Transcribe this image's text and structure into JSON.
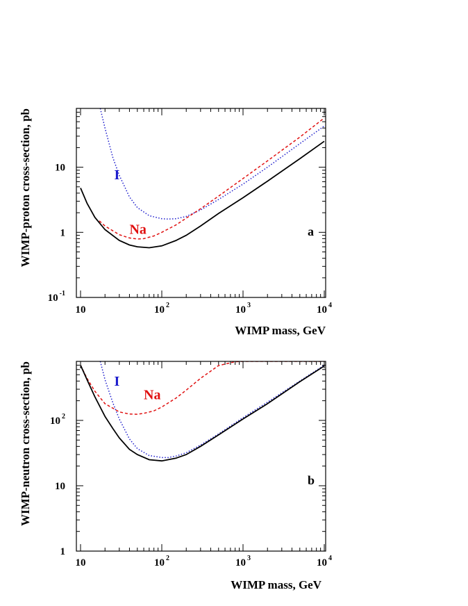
{
  "chart_data": [
    {
      "type": "line",
      "panel_label": "a",
      "xlabel": "WIMP mass, GeV",
      "ylabel": "WIMP-proton cross-section, pb",
      "xscale": "log",
      "yscale": "log",
      "xlim": [
        9,
        11000
      ],
      "ylim": [
        0.1,
        80
      ],
      "x_ticks": [
        {
          "base": "10",
          "exp": ""
        },
        {
          "base": "10",
          "exp": "2"
        },
        {
          "base": "10",
          "exp": "3"
        },
        {
          "base": "10",
          "exp": "4"
        }
      ],
      "y_ticks": [
        {
          "base": "10",
          "exp": "-1"
        },
        {
          "base": "1",
          "exp": ""
        },
        {
          "base": "10",
          "exp": ""
        }
      ],
      "series": [
        {
          "name": "I",
          "color": "#1a1acc",
          "dash": "dotted",
          "x": [
            17.5,
            20,
            25,
            30,
            40,
            50,
            70,
            100,
            120,
            150,
            200,
            300,
            500,
            1000,
            2000,
            5000,
            10000
          ],
          "y": [
            80,
            40,
            14,
            7.5,
            3.5,
            2.4,
            1.8,
            1.62,
            1.6,
            1.62,
            1.75,
            2.2,
            3.2,
            5.5,
            10,
            23,
            43
          ]
        },
        {
          "name": "Na",
          "color": "#e01010",
          "dash": "dashed",
          "x": [
            17,
            20,
            30,
            40,
            50,
            60,
            80,
            100,
            150,
            200,
            300,
            500,
            1000,
            2000,
            5000,
            10000
          ],
          "y": [
            1.5,
            1.25,
            0.92,
            0.82,
            0.79,
            0.8,
            0.88,
            1.0,
            1.3,
            1.65,
            2.3,
            3.6,
            6.7,
            12.5,
            29,
            57
          ]
        },
        {
          "name": "",
          "color": "#000000",
          "dash": "solid",
          "x": [
            10,
            12,
            15,
            20,
            30,
            40,
            50,
            70,
            100,
            150,
            200,
            300,
            500,
            1000,
            2000,
            5000,
            10000
          ],
          "y": [
            4.8,
            2.8,
            1.7,
            1.1,
            0.75,
            0.64,
            0.6,
            0.58,
            0.62,
            0.75,
            0.9,
            1.25,
            1.95,
            3.4,
            6.1,
            13.5,
            25
          ]
        }
      ],
      "labels": [
        {
          "text": "I",
          "series": "I",
          "x": 26,
          "y": 6.5
        },
        {
          "text": "Na",
          "series": "Na",
          "x": 40,
          "y": 0.95
        }
      ]
    },
    {
      "type": "line",
      "panel_label": "b",
      "xlabel": "WIMP mass, GeV",
      "ylabel": "WIMP-neutron cross-section, pb",
      "xscale": "log",
      "yscale": "log",
      "xlim": [
        9,
        11000
      ],
      "ylim": [
        1,
        800
      ],
      "x_ticks": [
        {
          "base": "10",
          "exp": ""
        },
        {
          "base": "10",
          "exp": "2"
        },
        {
          "base": "10",
          "exp": "3"
        },
        {
          "base": "10",
          "exp": "4"
        }
      ],
      "y_ticks": [
        {
          "base": "1",
          "exp": ""
        },
        {
          "base": "10",
          "exp": ""
        },
        {
          "base": "10",
          "exp": "2"
        }
      ],
      "series": [
        {
          "name": "I",
          "color": "#1a1acc",
          "dash": "dotted",
          "x": [
            17.5,
            20,
            25,
            30,
            40,
            50,
            70,
            100,
            120,
            150,
            200,
            300,
            500,
            1000,
            2000,
            5000,
            10000
          ],
          "y": [
            800,
            420,
            185,
            105,
            52,
            37,
            29,
            27,
            27,
            28.5,
            32,
            42,
            62,
            110,
            190,
            400,
            700
          ]
        },
        {
          "name": "Na",
          "color": "#e01010",
          "dash": "dashed",
          "x": [
            10,
            12,
            15,
            20,
            30,
            40,
            50,
            60,
            80,
            100,
            150,
            200,
            300,
            500,
            800,
            1000,
            10000
          ],
          "y": [
            700,
            440,
            280,
            180,
            135,
            125,
            124,
            128,
            140,
            160,
            220,
            290,
            440,
            690,
            790,
            800,
            800
          ]
        },
        {
          "name": "",
          "color": "#000000",
          "dash": "solid",
          "x": [
            10,
            12,
            15,
            20,
            25,
            30,
            40,
            50,
            70,
            100,
            150,
            200,
            300,
            500,
            1000,
            2000,
            5000,
            10000
          ],
          "y": [
            700,
            420,
            230,
            115,
            75,
            54,
            36,
            30,
            25,
            24,
            26.5,
            30,
            40,
            60,
            105,
            180,
            390,
            680
          ]
        }
      ],
      "labels": [
        {
          "text": "I",
          "series": "I",
          "x": 26,
          "y": 340
        },
        {
          "text": "Na",
          "series": "Na",
          "x": 60,
          "y": 210
        }
      ]
    }
  ]
}
